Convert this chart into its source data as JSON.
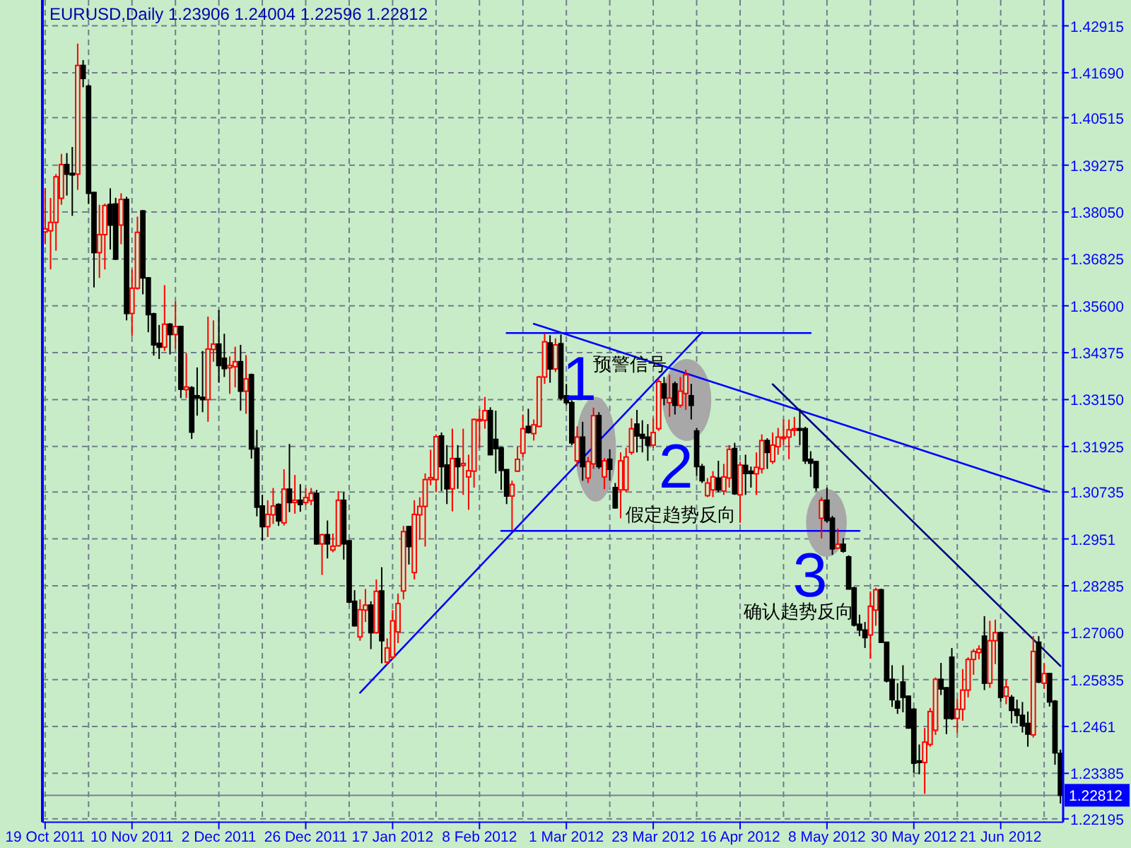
{
  "chart_data": {
    "type": "candlestick",
    "title": "EURUSD,Daily  1.23906 1.24004 1.22596 1.22812",
    "categories": [
      "19 Oct 2011",
      null,
      null,
      null,
      null,
      null,
      null,
      null,
      null,
      null,
      null,
      null,
      null,
      null,
      null,
      null,
      "10 Nov 2011",
      null,
      null,
      null,
      null,
      null,
      null,
      null,
      null,
      null,
      null,
      null,
      null,
      null,
      null,
      null,
      "2 Dec 2011",
      null,
      null,
      null,
      null,
      null,
      null,
      null,
      null,
      null,
      null,
      null,
      null,
      null,
      null,
      null,
      "26 Dec 2011",
      null,
      null,
      null,
      null,
      null,
      null,
      null,
      null,
      null,
      null,
      null,
      null,
      null,
      null,
      null,
      "17 Jan 2012",
      null,
      null,
      null,
      null,
      null,
      null,
      null,
      null,
      null,
      null,
      null,
      null,
      null,
      null,
      null,
      "8 Feb 2012",
      null,
      null,
      null,
      null,
      null,
      null,
      null,
      null,
      null,
      null,
      null,
      null,
      null,
      null,
      null,
      "1 Mar 2012",
      null,
      null,
      null,
      null,
      null,
      null,
      null,
      null,
      null,
      null,
      null,
      null,
      null,
      null,
      null,
      "23 Mar 2012",
      null,
      null,
      null,
      null,
      null,
      null,
      null,
      null,
      null,
      null,
      null,
      null,
      null,
      null,
      null,
      "16 Apr 2012",
      null,
      null,
      null,
      null,
      null,
      null,
      null,
      null,
      null,
      null,
      null,
      null,
      null,
      null,
      null,
      "8 May 2012",
      null,
      null,
      null,
      null,
      null,
      null,
      null,
      null,
      null,
      null,
      null,
      null,
      null,
      null,
      null,
      "30 May 2012",
      null,
      null,
      null,
      null,
      null,
      null,
      null,
      null,
      null,
      null,
      null,
      null,
      null,
      null,
      null,
      "21 Jun 2012",
      null,
      null,
      null,
      null,
      null,
      null,
      null,
      null,
      null,
      null,
      null
    ],
    "ohlc": [
      [
        1.3753,
        1.3867,
        1.3721,
        1.3761
      ],
      [
        1.3756,
        1.3842,
        1.3655,
        1.3778
      ],
      [
        1.3778,
        1.3904,
        1.3704,
        1.3897
      ],
      [
        1.3841,
        1.3957,
        1.3824,
        1.3929
      ],
      [
        1.3929,
        1.3959,
        1.3848,
        1.3904
      ],
      [
        1.3906,
        1.3975,
        1.3795,
        1.3902
      ],
      [
        1.3904,
        1.4245,
        1.3863,
        1.4188
      ],
      [
        1.4188,
        1.4202,
        1.4131,
        1.4154
      ],
      [
        1.4134,
        1.4138,
        1.3826,
        1.3854
      ],
      [
        1.3856,
        1.3858,
        1.3608,
        1.3699
      ],
      [
        1.3699,
        1.3824,
        1.3633,
        1.3746
      ],
      [
        1.3746,
        1.3827,
        1.3655,
        1.3822
      ],
      [
        1.3825,
        1.3867,
        1.3707,
        1.3771
      ],
      [
        1.3826,
        1.3842,
        1.368,
        1.3682
      ],
      [
        1.3771,
        1.3854,
        1.3721,
        1.3838
      ],
      [
        1.3838,
        1.3845,
        1.3522,
        1.354
      ],
      [
        1.354,
        1.3655,
        1.3481,
        1.3606
      ],
      [
        1.3606,
        1.3793,
        1.3602,
        1.3752
      ],
      [
        1.3808,
        1.381,
        1.359,
        1.3633
      ],
      [
        1.3633,
        1.3635,
        1.3491,
        1.3537
      ],
      [
        1.3539,
        1.3542,
        1.343,
        1.3458
      ],
      [
        1.3462,
        1.351,
        1.3421,
        1.3452
      ],
      [
        1.3452,
        1.3614,
        1.3442,
        1.3512
      ],
      [
        1.3512,
        1.3515,
        1.3433,
        1.3485
      ],
      [
        1.3485,
        1.3571,
        1.3448,
        1.3506
      ],
      [
        1.3506,
        1.3508,
        1.3319,
        1.3342
      ],
      [
        1.3341,
        1.3436,
        1.3319,
        1.3348
      ],
      [
        1.3346,
        1.335,
        1.3212,
        1.323
      ],
      [
        1.3325,
        1.3399,
        1.3273,
        1.3319
      ],
      [
        1.3321,
        1.3442,
        1.3282,
        1.3315
      ],
      [
        1.3315,
        1.3532,
        1.3257,
        1.3447
      ],
      [
        1.3446,
        1.3522,
        1.3414,
        1.346
      ],
      [
        1.346,
        1.3549,
        1.3359,
        1.3404
      ],
      [
        1.3423,
        1.3487,
        1.3374,
        1.3396
      ],
      [
        1.3398,
        1.3428,
        1.333,
        1.3404
      ],
      [
        1.3401,
        1.3453,
        1.3347,
        1.3414
      ],
      [
        1.3414,
        1.3458,
        1.3286,
        1.3337
      ],
      [
        1.3337,
        1.3431,
        1.3278,
        1.3369
      ],
      [
        1.338,
        1.3383,
        1.3161,
        1.3186
      ],
      [
        1.3188,
        1.3236,
        1.301,
        1.3034
      ],
      [
        1.3037,
        1.3066,
        1.2946,
        1.2983
      ],
      [
        1.2983,
        1.3052,
        1.2956,
        1.3015
      ],
      [
        1.3014,
        1.3084,
        1.299,
        1.3037
      ],
      [
        1.3041,
        1.3044,
        1.2985,
        1.2998
      ],
      [
        1.2993,
        1.3133,
        1.2986,
        1.3081
      ],
      [
        1.3081,
        1.3199,
        1.3021,
        1.3046
      ],
      [
        1.3046,
        1.3118,
        1.3017,
        1.3052
      ],
      [
        1.3052,
        1.3094,
        1.3022,
        1.3041
      ],
      [
        1.3046,
        1.3084,
        1.3039,
        1.3059
      ],
      [
        1.3051,
        1.3084,
        1.3039,
        1.307
      ],
      [
        1.307,
        1.3079,
        1.2936,
        1.2938
      ],
      [
        1.2938,
        1.2964,
        1.2857,
        1.2962
      ],
      [
        1.2962,
        1.2999,
        1.29,
        1.2938
      ],
      [
        1.2922,
        1.2965,
        1.2916,
        1.2932
      ],
      [
        1.2933,
        1.3076,
        1.2931,
        1.3052
      ],
      [
        1.3052,
        1.3073,
        1.2897,
        1.2938
      ],
      [
        1.2946,
        1.2948,
        1.2783,
        1.2786
      ],
      [
        1.2788,
        1.2817,
        1.2722,
        1.2724
      ],
      [
        1.2695,
        1.2793,
        1.2685,
        1.2766
      ],
      [
        1.2765,
        1.282,
        1.2734,
        1.2778
      ],
      [
        1.2778,
        1.2788,
        1.2663,
        1.2706
      ],
      [
        1.2706,
        1.2845,
        1.2703,
        1.2814
      ],
      [
        1.2815,
        1.2877,
        1.2626,
        1.2685
      ],
      [
        1.2629,
        1.2691,
        1.2621,
        1.2666
      ],
      [
        1.2642,
        1.2765,
        1.2636,
        1.2737
      ],
      [
        1.2708,
        1.2808,
        1.2679,
        1.2782
      ],
      [
        1.2815,
        1.2985,
        1.2793,
        1.297
      ],
      [
        1.2983,
        1.2985,
        1.2884,
        1.2931
      ],
      [
        1.2863,
        1.3052,
        1.2845,
        1.3015
      ],
      [
        1.3014,
        1.306,
        1.2949,
        1.3036
      ],
      [
        1.3036,
        1.3122,
        1.2931,
        1.3106
      ],
      [
        1.3106,
        1.3184,
        1.3091,
        1.3111
      ],
      [
        1.3106,
        1.3224,
        1.3073,
        1.3218
      ],
      [
        1.322,
        1.3229,
        1.3076,
        1.314
      ],
      [
        1.3144,
        1.3196,
        1.3042,
        1.3082
      ],
      [
        1.3082,
        1.3239,
        1.3023,
        1.3161
      ],
      [
        1.3161,
        1.3196,
        1.3082,
        1.314
      ],
      [
        1.3143,
        1.3239,
        1.3066,
        1.3148
      ],
      [
        1.3113,
        1.3171,
        1.3027,
        1.3129
      ],
      [
        1.3128,
        1.3266,
        1.3085,
        1.3263
      ],
      [
        1.3261,
        1.3291,
        1.3189,
        1.3263
      ],
      [
        1.3261,
        1.3322,
        1.3239,
        1.3286
      ],
      [
        1.3286,
        1.3295,
        1.317,
        1.3171
      ],
      [
        1.3211,
        1.3286,
        1.3122,
        1.3187
      ],
      [
        1.3189,
        1.3192,
        1.3079,
        1.313
      ],
      [
        1.3132,
        1.3133,
        1.3042,
        1.3063
      ],
      [
        1.3063,
        1.3103,
        1.2974,
        1.3093
      ],
      [
        1.3128,
        1.3193,
        1.3126,
        1.3159
      ],
      [
        1.3175,
        1.3276,
        1.3165,
        1.3239
      ],
      [
        1.3245,
        1.3291,
        1.3226,
        1.3229
      ],
      [
        1.3226,
        1.3263,
        1.3208,
        1.3249
      ],
      [
        1.3245,
        1.3377,
        1.3243,
        1.3374
      ],
      [
        1.3374,
        1.3488,
        1.3356,
        1.3466
      ],
      [
        1.3463,
        1.3483,
        1.3359,
        1.3395
      ],
      [
        1.3395,
        1.3475,
        1.3387,
        1.3458
      ],
      [
        1.3461,
        1.3485,
        1.3313,
        1.3319
      ],
      [
        1.3325,
        1.3356,
        1.33,
        1.3307
      ],
      [
        1.3307,
        1.3313,
        1.3196,
        1.3202
      ],
      [
        1.3155,
        1.3245,
        1.314,
        1.3217
      ],
      [
        1.3217,
        1.3257,
        1.3103,
        1.314
      ],
      [
        1.311,
        1.3165,
        1.3097,
        1.3153
      ],
      [
        1.3147,
        1.3294,
        1.3134,
        1.3273
      ],
      [
        1.3273,
        1.3282,
        1.3134,
        1.314
      ],
      [
        1.3113,
        1.3162,
        1.3081,
        1.3155
      ],
      [
        1.3159,
        1.3185,
        1.3103,
        1.3133
      ],
      [
        1.3085,
        1.3097,
        1.303,
        1.3032
      ],
      [
        1.3079,
        1.3177,
        1.3005,
        1.3155
      ],
      [
        1.3079,
        1.3189,
        1.3073,
        1.3165
      ],
      [
        1.3177,
        1.3266,
        1.3171,
        1.3239
      ],
      [
        1.3251,
        1.3288,
        1.3177,
        1.322
      ],
      [
        1.3224,
        1.3261,
        1.3177,
        1.3214
      ],
      [
        1.3217,
        1.3251,
        1.3155,
        1.3196
      ],
      [
        1.3196,
        1.3266,
        1.3189,
        1.3229
      ],
      [
        1.3239,
        1.337,
        1.3233,
        1.3362
      ],
      [
        1.3356,
        1.3374,
        1.33,
        1.3319
      ],
      [
        1.3307,
        1.338,
        1.327,
        1.3319
      ],
      [
        1.3356,
        1.3362,
        1.3276,
        1.33
      ],
      [
        1.33,
        1.3374,
        1.3294,
        1.3337
      ],
      [
        1.3331,
        1.3393,
        1.3288,
        1.338
      ],
      [
        1.3325,
        1.3356,
        1.3263,
        1.33
      ],
      [
        1.3233,
        1.3241,
        1.3116,
        1.314
      ],
      [
        1.314,
        1.3147,
        1.3097,
        1.3103
      ],
      [
        1.3064,
        1.311,
        1.306,
        1.3097
      ],
      [
        1.3079,
        1.3128,
        1.306,
        1.3113
      ],
      [
        1.311,
        1.3155,
        1.3073,
        1.3079
      ],
      [
        1.3076,
        1.3147,
        1.3066,
        1.3113
      ],
      [
        1.311,
        1.3196,
        1.3085,
        1.3185
      ],
      [
        1.3187,
        1.3202,
        1.3066,
        1.3069
      ],
      [
        1.3066,
        1.3153,
        1.2993,
        1.3144
      ],
      [
        1.3143,
        1.3171,
        1.3066,
        1.3122
      ],
      [
        1.3128,
        1.314,
        1.3085,
        1.3122
      ],
      [
        1.3121,
        1.3177,
        1.3066,
        1.3138
      ],
      [
        1.3134,
        1.3224,
        1.3122,
        1.3208
      ],
      [
        1.3208,
        1.3214,
        1.3134,
        1.3177
      ],
      [
        1.3153,
        1.3229,
        1.3147,
        1.3196
      ],
      [
        1.3192,
        1.3241,
        1.3171,
        1.3217
      ],
      [
        1.3214,
        1.3263,
        1.3196,
        1.3217
      ],
      [
        1.3217,
        1.3263,
        1.3159,
        1.3236
      ],
      [
        1.3235,
        1.327,
        1.322,
        1.3239
      ],
      [
        1.3239,
        1.3291,
        1.3196,
        1.3235
      ],
      [
        1.3239,
        1.3244,
        1.3147,
        1.3155
      ],
      [
        1.3159,
        1.318,
        1.3113,
        1.3149
      ],
      [
        1.3153,
        1.3155,
        1.3076,
        1.3085
      ],
      [
        1.3005,
        1.306,
        1.2952,
        1.3052
      ],
      [
        1.3052,
        1.3085,
        1.2993,
        1.2999
      ],
      [
        1.3005,
        1.3011,
        1.2909,
        1.2925
      ],
      [
        1.2927,
        1.2978,
        1.2925,
        1.2937
      ],
      [
        1.2937,
        1.2953,
        1.2915,
        1.2919
      ],
      [
        1.2904,
        1.2908,
        1.2819,
        1.282
      ],
      [
        1.2823,
        1.2826,
        1.2722,
        1.2726
      ],
      [
        1.2728,
        1.2753,
        1.2697,
        1.2713
      ],
      [
        1.2713,
        1.2734,
        1.2666,
        1.2693
      ],
      [
        1.27,
        1.2814,
        1.2638,
        1.2775
      ],
      [
        1.2765,
        1.2823,
        1.2724,
        1.2818
      ],
      [
        1.2818,
        1.2821,
        1.2679,
        1.2681
      ],
      [
        1.2681,
        1.2682,
        1.2576,
        1.258
      ],
      [
        1.2584,
        1.2621,
        1.2512,
        1.2531
      ],
      [
        1.2527,
        1.2574,
        1.2494,
        1.2509
      ],
      [
        1.2577,
        1.2621,
        1.2498,
        1.2537
      ],
      [
        1.254,
        1.2542,
        1.2455,
        1.2457
      ],
      [
        1.2506,
        1.2509,
        1.234,
        1.2365
      ],
      [
        1.2371,
        1.2414,
        1.2336,
        1.2367
      ],
      [
        1.2367,
        1.2457,
        1.2285,
        1.242
      ],
      [
        1.2414,
        1.2509,
        1.2408,
        1.25
      ],
      [
        1.2451,
        1.2589,
        1.2439,
        1.2584
      ],
      [
        1.2584,
        1.2627,
        1.2543,
        1.2559
      ],
      [
        1.2562,
        1.2564,
        1.2441,
        1.2482
      ],
      [
        1.2642,
        1.2666,
        1.2478,
        1.2482
      ],
      [
        1.2482,
        1.2534,
        1.2445,
        1.2506
      ],
      [
        1.2506,
        1.2611,
        1.2476,
        1.2556
      ],
      [
        1.2556,
        1.2642,
        1.2537,
        1.2636
      ],
      [
        1.2636,
        1.2663,
        1.2596,
        1.2657
      ],
      [
        1.2654,
        1.2673,
        1.2636,
        1.2663
      ],
      [
        1.2697,
        1.2749,
        1.2556,
        1.2574
      ],
      [
        1.2574,
        1.2737,
        1.2562,
        1.2685
      ],
      [
        1.2685,
        1.274,
        1.2624,
        1.2706
      ],
      [
        1.2706,
        1.2709,
        1.2525,
        1.2537
      ],
      [
        1.254,
        1.2583,
        1.2519,
        1.2564
      ],
      [
        1.2537,
        1.2543,
        1.2469,
        1.2503
      ],
      [
        1.2506,
        1.2531,
        1.2469,
        1.249
      ],
      [
        1.249,
        1.2525,
        1.2445,
        1.2463
      ],
      [
        1.2469,
        1.25,
        1.2408,
        1.2441
      ],
      [
        1.2439,
        1.2697,
        1.2432,
        1.2657
      ],
      [
        1.2681,
        1.2697,
        1.2574,
        1.2577
      ],
      [
        1.2574,
        1.2626,
        1.2559,
        1.2599
      ],
      [
        1.2599,
        1.2601,
        1.2513,
        1.2525
      ],
      [
        1.2527,
        1.253,
        1.2361,
        1.2392
      ],
      [
        1.23906,
        1.24004,
        1.22596,
        1.22812
      ]
    ],
    "colors": [
      "#ff0000",
      "#ff0000",
      "#ff0000",
      "#ff0000",
      "#000000",
      "#000000",
      "#ff0000",
      "#000000",
      "#000000",
      "#000000",
      "#ff0000",
      "#ff0000",
      "#000000",
      "#000000",
      "#ff0000",
      "#000000",
      "#ff0000",
      "#ff0000",
      "#000000",
      "#000000",
      "#000000",
      "#000000",
      "#ff0000",
      "#000000",
      "#ff0000",
      "#000000",
      "#ff0000",
      "#000000",
      "#000000",
      "#000000",
      "#ff0000",
      "#ff0000",
      "#000000",
      "#000000",
      "#ff0000",
      "#ff0000",
      "#000000",
      "#ff0000",
      "#000000",
      "#000000",
      "#000000",
      "#ff0000",
      "#ff0000",
      "#000000",
      "#ff0000",
      "#000000",
      "#ff0000",
      "#000000",
      "#ff0000",
      "#ff0000",
      "#000000",
      "#ff0000",
      "#000000",
      "#ff0000",
      "#ff0000",
      "#000000",
      "#000000",
      "#000000",
      "#ff0000",
      "#ff0000",
      "#000000",
      "#ff0000",
      "#000000",
      "#ff0000",
      "#ff0000",
      "#ff0000",
      "#ff0000",
      "#000000",
      "#ff0000",
      "#ff0000",
      "#ff0000",
      "#ff0000",
      "#ff0000",
      "#000000",
      "#000000",
      "#ff0000",
      "#000000",
      "#ff0000",
      "#ff0000",
      "#ff0000",
      "#ff0000",
      "#ff0000",
      "#000000",
      "#000000",
      "#000000",
      "#000000",
      "#ff0000",
      "#ff0000",
      "#ff0000",
      "#000000",
      "#ff0000",
      "#ff0000",
      "#ff0000",
      "#000000",
      "#ff0000",
      "#000000",
      "#000000",
      "#000000",
      "#ff0000",
      "#000000",
      "#ff0000",
      "#ff0000",
      "#000000",
      "#ff0000",
      "#000000",
      "#000000",
      "#ff0000",
      "#ff0000",
      "#ff0000",
      "#000000",
      "#000000",
      "#000000",
      "#ff0000",
      "#ff0000",
      "#000000",
      "#ff0000",
      "#000000",
      "#ff0000",
      "#ff0000",
      "#000000",
      "#000000",
      "#000000",
      "#ff0000",
      "#ff0000",
      "#000000",
      "#ff0000",
      "#ff0000",
      "#000000",
      "#ff0000",
      "#000000",
      "#000000",
      "#ff0000",
      "#ff0000",
      "#000000",
      "#ff0000",
      "#ff0000",
      "#ff0000",
      "#ff0000",
      "#ff0000",
      "#000000",
      "#000000",
      "#000000",
      "#000000",
      "#ff0000",
      "#000000",
      "#000000",
      "#ff0000",
      "#000000",
      "#000000",
      "#000000",
      "#000000",
      "#000000",
      "#ff0000",
      "#ff0000",
      "#000000",
      "#000000",
      "#000000",
      "#000000",
      "#000000",
      "#000000",
      "#000000",
      "#000000",
      "#ff0000",
      "#ff0000",
      "#ff0000",
      "#000000",
      "#000000",
      "#000000",
      "#ff0000",
      "#ff0000",
      "#ff0000",
      "#ff0000",
      "#ff0000",
      "#000000",
      "#ff0000",
      "#ff0000",
      "#000000",
      "#ff0000",
      "#000000",
      "#000000",
      "#000000",
      "#000000",
      "#ff0000",
      "#000000",
      "#ff0000",
      "#000000",
      "#000000",
      "#000000"
    ],
    "series": [
      {
        "type": "line",
        "color": "#0000ff",
        "values": [
          null,
          null,
          null,
          null,
          null,
          null,
          null,
          null,
          null,
          null,
          null,
          null,
          null,
          null,
          null,
          null,
          null,
          null,
          null,
          null,
          null,
          null,
          null,
          null,
          null,
          null,
          null,
          null,
          null,
          null,
          null,
          null,
          null,
          null,
          null,
          null,
          null,
          null,
          null,
          null,
          null,
          null,
          null,
          null,
          null,
          null,
          null,
          null,
          null,
          null,
          null,
          null,
          null,
          null,
          null,
          null,
          null,
          null,
          1.2549,
          null,
          null,
          null,
          null,
          null,
          null,
          null,
          null,
          null,
          null,
          null,
          null,
          null,
          null,
          null,
          null,
          null,
          null,
          null,
          null,
          null,
          null,
          null,
          null,
          null,
          null,
          null,
          null,
          null,
          null,
          null,
          null,
          null,
          null,
          null,
          null,
          null,
          null,
          null,
          null,
          null,
          null,
          null,
          null,
          null,
          null,
          null,
          null,
          null,
          null,
          null,
          null,
          null,
          null,
          null,
          null,
          null,
          null,
          null,
          null,
          null,
          null,
          1.3491,
          null,
          null,
          null,
          null,
          null,
          null,
          null,
          null,
          null,
          null,
          null,
          null,
          null,
          null,
          null,
          null,
          null,
          null,
          null,
          null,
          null,
          null,
          null,
          null,
          null,
          null,
          null,
          null,
          null,
          null,
          null,
          null,
          null,
          null,
          null,
          null,
          null,
          null,
          null,
          null,
          null,
          null,
          null,
          null,
          null,
          null,
          null,
          null,
          null,
          null,
          null,
          null,
          null,
          null,
          null,
          null,
          null,
          null,
          null,
          null,
          null,
          null,
          null,
          null,
          null,
          null
        ]
      },
      {
        "type": "line",
        "color": "#0000ff",
        "values": [
          null,
          null,
          null,
          null,
          null,
          null,
          null,
          null,
          null,
          null,
          null,
          null,
          null,
          null,
          null,
          null,
          null,
          null,
          null,
          null,
          null,
          null,
          null,
          null,
          null,
          null,
          null,
          null,
          null,
          null,
          null,
          null,
          null,
          null,
          null,
          null,
          null,
          null,
          null,
          null,
          null,
          null,
          null,
          null,
          null,
          null,
          null,
          null,
          null,
          null,
          null,
          null,
          null,
          null,
          null,
          null,
          null,
          null,
          null,
          null,
          null,
          null,
          null,
          null,
          null,
          null,
          null,
          null,
          null,
          null,
          null,
          null,
          null,
          null,
          null,
          null,
          null,
          null,
          null,
          null,
          null,
          null,
          null,
          null,
          null,
          null,
          null,
          null,
          null,
          null,
          1.3513,
          null,
          null,
          null,
          null,
          null,
          null,
          null,
          null,
          null,
          null,
          null,
          null,
          null,
          null,
          null,
          null,
          null,
          null,
          null,
          null,
          null,
          null,
          null,
          null,
          null,
          null,
          null,
          null,
          null,
          null,
          null,
          null,
          null,
          null,
          null,
          null,
          null,
          null,
          null,
          null,
          null,
          null,
          null,
          null,
          null,
          null,
          null,
          null,
          null,
          null,
          null,
          null,
          null,
          null,
          null,
          null,
          null,
          null,
          null,
          null,
          null,
          null,
          null,
          null,
          null,
          null,
          null,
          null,
          null,
          null,
          null,
          null,
          null,
          null,
          null,
          null,
          null,
          null,
          null,
          null,
          null,
          null,
          null,
          null,
          null,
          null,
          null,
          null,
          null,
          null,
          null,
          null,
          null,
          null,
          1.3074,
          null,
          null
        ]
      },
      {
        "type": "line",
        "color": "#000080",
        "values": [
          null,
          null,
          null,
          null,
          null,
          null,
          null,
          null,
          null,
          null,
          null,
          null,
          null,
          null,
          null,
          null,
          null,
          null,
          null,
          null,
          null,
          null,
          null,
          null,
          null,
          null,
          null,
          null,
          null,
          null,
          null,
          null,
          null,
          null,
          null,
          null,
          null,
          null,
          null,
          null,
          null,
          null,
          null,
          null,
          null,
          null,
          null,
          null,
          null,
          null,
          null,
          null,
          null,
          null,
          null,
          null,
          null,
          null,
          null,
          null,
          null,
          null,
          null,
          null,
          null,
          null,
          null,
          null,
          null,
          null,
          null,
          null,
          null,
          null,
          null,
          null,
          null,
          null,
          null,
          null,
          null,
          null,
          null,
          null,
          null,
          null,
          null,
          null,
          null,
          null,
          null,
          null,
          null,
          null,
          null,
          null,
          null,
          null,
          null,
          null,
          null,
          null,
          null,
          null,
          null,
          null,
          null,
          null,
          null,
          null,
          null,
          null,
          null,
          null,
          null,
          null,
          null,
          null,
          null,
          null,
          null,
          null,
          null,
          null,
          null,
          null,
          null,
          null,
          null,
          null,
          null,
          null,
          null,
          null,
          1.3355,
          null,
          null,
          null,
          null,
          null,
          null,
          null,
          null,
          null,
          null,
          null,
          null,
          null,
          null,
          null,
          null,
          null,
          null,
          null,
          null,
          null,
          null,
          null,
          null,
          null,
          null,
          null,
          null,
          null,
          null,
          null,
          null,
          null,
          null,
          null,
          null,
          null,
          null,
          null,
          null,
          null,
          null,
          null,
          null,
          null,
          null,
          null,
          null,
          null,
          null,
          null,
          null,
          1.2619
        ]
      },
      {
        "type": "line",
        "color": "#0000ff",
        "values": [
          null,
          null,
          null,
          null,
          null,
          null,
          null,
          null,
          null,
          null,
          null,
          null,
          null,
          null,
          null,
          null,
          null,
          null,
          null,
          null,
          null,
          null,
          null,
          null,
          null,
          null,
          null,
          null,
          null,
          null,
          null,
          null,
          null,
          null,
          null,
          null,
          null,
          null,
          null,
          null,
          null,
          null,
          null,
          null,
          null,
          null,
          null,
          null,
          null,
          null,
          null,
          null,
          null,
          null,
          null,
          null,
          null,
          null,
          null,
          null,
          null,
          null,
          null,
          null,
          null,
          null,
          null,
          null,
          null,
          null,
          null,
          null,
          null,
          null,
          null,
          null,
          null,
          null,
          null,
          null,
          null,
          null,
          null,
          null,
          null,
          1.3489,
          null,
          null,
          null,
          null,
          null,
          null,
          null,
          null,
          null,
          null,
          null,
          null,
          null,
          null,
          null,
          null,
          null,
          null,
          null,
          null,
          null,
          null,
          null,
          null,
          null,
          null,
          null,
          null,
          null,
          null,
          null,
          null,
          null,
          null,
          null,
          null,
          null,
          null,
          null,
          null,
          null,
          null,
          null,
          null,
          null,
          null,
          null,
          null,
          null,
          null,
          null,
          null,
          null,
          null,
          null,
          1.3489,
          null,
          null,
          null,
          null,
          null,
          null,
          null,
          null,
          null,
          null,
          null,
          null,
          null,
          null,
          null,
          null,
          null,
          null,
          null,
          null,
          null,
          null,
          null,
          null,
          null,
          null,
          null,
          null,
          null,
          null,
          null,
          null,
          null,
          null,
          null,
          null,
          null,
          null,
          null,
          null,
          null,
          null,
          null,
          null,
          null,
          null
        ]
      },
      {
        "type": "line",
        "color": "#0000ff",
        "values": [
          null,
          null,
          null,
          null,
          null,
          null,
          null,
          null,
          null,
          null,
          null,
          null,
          null,
          null,
          null,
          null,
          null,
          null,
          null,
          null,
          null,
          null,
          null,
          null,
          null,
          null,
          null,
          null,
          null,
          null,
          null,
          null,
          null,
          null,
          null,
          null,
          null,
          null,
          null,
          null,
          null,
          null,
          null,
          null,
          null,
          null,
          null,
          null,
          null,
          null,
          null,
          null,
          null,
          null,
          null,
          null,
          null,
          null,
          null,
          null,
          null,
          null,
          null,
          null,
          null,
          null,
          null,
          null,
          null,
          null,
          null,
          null,
          null,
          null,
          null,
          null,
          null,
          null,
          null,
          null,
          null,
          null,
          null,
          null,
          1.2972,
          null,
          null,
          null,
          null,
          null,
          null,
          null,
          null,
          null,
          null,
          null,
          null,
          null,
          null,
          null,
          null,
          null,
          null,
          null,
          null,
          null,
          null,
          null,
          null,
          null,
          null,
          null,
          null,
          null,
          null,
          null,
          null,
          null,
          null,
          null,
          null,
          null,
          null,
          null,
          null,
          null,
          null,
          null,
          null,
          null,
          null,
          null,
          null,
          null,
          null,
          null,
          null,
          null,
          null,
          null,
          null,
          null,
          null,
          null,
          null,
          null,
          null,
          null,
          null,
          null,
          1.2972,
          null,
          null,
          null,
          null,
          null,
          null,
          null,
          null,
          null,
          null,
          null,
          null,
          null,
          null,
          null,
          null,
          null,
          null,
          null,
          null,
          null,
          null,
          null,
          null,
          null,
          null,
          null,
          null,
          null,
          null,
          null,
          null,
          null,
          null,
          null,
          null,
          null
        ]
      }
    ],
    "ref_lines": [
      {
        "axis": "y",
        "value": 1.22812,
        "label": "1.22812",
        "color": "#7b8094"
      }
    ],
    "annotations": [
      "1",
      "预警信号",
      "2",
      "假定趋势反向",
      "3",
      "确认趋势反向"
    ],
    "ylim": [
      1.2211,
      1.4359
    ],
    "yticks": [
      1.42915,
      {
        "value": 1.4169,
        "label": "1.41690"
      },
      1.40515,
      1.39275,
      {
        "value": 1.3805,
        "label": "1.38050"
      },
      1.36825,
      {
        "value": 1.356,
        "label": "1.35600"
      },
      1.34375,
      {
        "value": 1.3315,
        "label": "1.33150"
      },
      1.31925,
      1.30735,
      1.2951,
      1.28285,
      {
        "value": 1.2706,
        "label": "1.27060"
      },
      1.25835,
      1.2461,
      1.23385,
      1.22195
    ],
    "grid": true
  }
}
